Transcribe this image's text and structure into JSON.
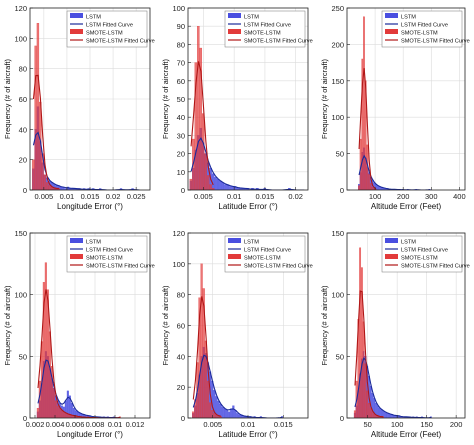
{
  "colors": {
    "lstm_bar": "#4a4fe0",
    "lstm_curve": "#1a2a9a",
    "smote_bar": "#e23a3a",
    "smote_curve": "#b01616",
    "grid": "#dcdcdc",
    "axis": "#222222"
  },
  "legend_labels": [
    "LSTM",
    "LSTM Fitted Curve",
    "SMOTE-LSTM",
    "SMOTE-LSTM Fitted Curve"
  ],
  "chart_data": [
    {
      "type": "bar",
      "panel": "top-left",
      "xlabel": "Longitude Error (°)",
      "ylabel": "Frequency (# of aircraft)",
      "xlim": [
        0.002,
        0.028
      ],
      "ylim": [
        0,
        120
      ],
      "xticks": [
        0.005,
        0.01,
        0.015,
        0.02,
        0.025
      ],
      "xtick_labels": [
        "0.005",
        "0.01",
        "0.015",
        "0.02",
        "0.025"
      ],
      "yticks": [
        0,
        20,
        40,
        60,
        80,
        100,
        120
      ],
      "grid": true,
      "legend_position": "top-right",
      "bin_width": 0.0005,
      "series": [
        {
          "name": "LSTM",
          "bin_start": 0.0025,
          "values": [
            14,
            40,
            55,
            32,
            18,
            10,
            8,
            6,
            5,
            4,
            3,
            3,
            2,
            2,
            1,
            2,
            1,
            1,
            1,
            1,
            1,
            0,
            1,
            0,
            1,
            0,
            1,
            0,
            0,
            1,
            0,
            0,
            0,
            0,
            0,
            0,
            0,
            0,
            1,
            0,
            0,
            0,
            0,
            1,
            0,
            0,
            0
          ]
        },
        {
          "name": "SMOTE-LSTM",
          "bin_start": 0.0025,
          "values": [
            20,
            95,
            110,
            58,
            24,
            10,
            5,
            3,
            2,
            1,
            1,
            1
          ]
        }
      ]
    },
    {
      "type": "bar",
      "panel": "top-middle",
      "xlabel": "Latitude Error (°)",
      "ylabel": "Frequency (# of aircraft)",
      "xlim": [
        0.0025,
        0.022
      ],
      "ylim": [
        0,
        100
      ],
      "xticks": [
        0.005,
        0.01,
        0.015,
        0.02
      ],
      "xtick_labels": [
        "0.005",
        "0.01",
        "0.015",
        "0.02"
      ],
      "yticks": [
        0,
        10,
        20,
        30,
        40,
        50,
        60,
        70,
        80,
        90,
        100
      ],
      "grid": true,
      "legend_position": "top-right",
      "bin_width": 0.0004,
      "series": [
        {
          "name": "LSTM",
          "bin_start": 0.0028,
          "values": [
            5,
            12,
            22,
            30,
            34,
            26,
            20,
            15,
            12,
            9,
            7,
            6,
            5,
            4,
            3,
            3,
            2,
            2,
            2,
            1,
            1,
            1,
            1,
            1,
            0,
            1,
            0,
            1,
            0,
            0,
            1,
            0,
            0,
            0,
            0,
            0,
            0,
            0,
            0,
            0,
            1,
            0,
            0,
            0,
            0,
            0,
            0
          ]
        },
        {
          "name": "SMOTE-LSTM",
          "bin_start": 0.0028,
          "values": [
            6,
            28,
            70,
            90,
            78,
            42,
            20,
            8,
            3,
            1
          ]
        }
      ]
    },
    {
      "type": "bar",
      "panel": "top-right",
      "xlabel": "Altitude Error (Feet)",
      "ylabel": "Frequency (# of aircraft)",
      "xlim": [
        0,
        420
      ],
      "ylim": [
        0,
        250
      ],
      "xticks": [
        100,
        200,
        300,
        400
      ],
      "xtick_labels": [
        "100",
        "200",
        "300",
        "400"
      ],
      "yticks": [
        0,
        50,
        100,
        150,
        200,
        250
      ],
      "grid": true,
      "legend_position": "top-right",
      "bin_width": 6,
      "series": [
        {
          "name": "LSTM",
          "bin_start": 40,
          "values": [
            8,
            24,
            52,
            58,
            44,
            32,
            24,
            18,
            14,
            10,
            8,
            6,
            5,
            4,
            3,
            3,
            2,
            2,
            1,
            1,
            1,
            1,
            1,
            0,
            1,
            0,
            1,
            0,
            0,
            1,
            0,
            0,
            0,
            0,
            1,
            0,
            0,
            0,
            0,
            0,
            0,
            0,
            1
          ]
        },
        {
          "name": "SMOTE-LSTM",
          "bin_start": 40,
          "values": [
            6,
            70,
            180,
            238,
            150,
            62,
            22,
            9,
            4,
            2,
            1
          ]
        }
      ]
    },
    {
      "type": "bar",
      "panel": "bottom-left",
      "xlabel": "Longitude Error (°)",
      "ylabel": "Frequency (# of aircraft)",
      "xlim": [
        0.0015,
        0.0135
      ],
      "ylim": [
        0,
        150
      ],
      "xticks": [
        0.002,
        0.004,
        0.006,
        0.008,
        0.01,
        0.012
      ],
      "xtick_labels": [
        "0.002",
        "0.004",
        "0.006",
        "0.008",
        "0.01",
        "0.012"
      ],
      "yticks": [
        0,
        50,
        100,
        150
      ],
      "grid": true,
      "legend_position": "top-right",
      "bin_width": 0.0002,
      "series": [
        {
          "name": "LSTM",
          "bin_start": 0.0022,
          "values": [
            5,
            14,
            28,
            46,
            54,
            50,
            40,
            32,
            24,
            18,
            14,
            12,
            10,
            9,
            14,
            22,
            18,
            12,
            8,
            6,
            5,
            4,
            3,
            3,
            2,
            2,
            2,
            1,
            1,
            1,
            1,
            1,
            0,
            1,
            0,
            1,
            0,
            0,
            1,
            0,
            0,
            0
          ]
        },
        {
          "name": "SMOTE-LSTM",
          "bin_start": 0.0022,
          "values": [
            8,
            30,
            62,
            110,
            126,
            104,
            70,
            42,
            24,
            14,
            10,
            8,
            6,
            5,
            4,
            3,
            3,
            2,
            2,
            2,
            1,
            1,
            1,
            1,
            0,
            1,
            0,
            0,
            1,
            0,
            0,
            0,
            0,
            0,
            0,
            0,
            0,
            0,
            0,
            0,
            0,
            1
          ]
        }
      ]
    },
    {
      "type": "bar",
      "panel": "bottom-middle",
      "xlabel": "Latitude Error (°)",
      "ylabel": "Frequency (# of aircraft)",
      "xlim": [
        0.0015,
        0.0185
      ],
      "ylim": [
        0,
        120
      ],
      "xticks": [
        0.005,
        0.01,
        0.015
      ],
      "xtick_labels": [
        "0.005",
        "0.01",
        "0.015"
      ],
      "yticks": [
        0,
        20,
        40,
        60,
        80,
        100,
        120
      ],
      "grid": true,
      "legend_position": "top-right",
      "bin_width": 0.0003,
      "series": [
        {
          "name": "LSTM",
          "bin_start": 0.0021,
          "values": [
            3,
            8,
            16,
            28,
            40,
            46,
            42,
            36,
            30,
            24,
            18,
            14,
            11,
            9,
            7,
            6,
            5,
            4,
            6,
            8,
            5,
            3,
            2,
            2,
            1,
            1,
            1,
            1,
            0,
            1,
            0,
            0,
            1,
            0,
            0,
            0,
            0,
            0,
            0,
            0,
            0,
            0,
            1
          ]
        },
        {
          "name": "SMOTE-LSTM",
          "bin_start": 0.0021,
          "values": [
            4,
            12,
            36,
            78,
            100,
            84,
            50,
            24,
            10,
            5,
            3,
            2,
            1,
            1
          ]
        }
      ]
    },
    {
      "type": "bar",
      "panel": "bottom-right",
      "xlabel": "Altitude Error (Feet)",
      "ylabel": "Frequency (# of aircraft)",
      "xlim": [
        15,
        215
      ],
      "ylim": [
        0,
        150
      ],
      "xticks": [
        50,
        100,
        150,
        200
      ],
      "xtick_labels": [
        "50",
        "100",
        "150",
        "200"
      ],
      "yticks": [
        0,
        50,
        100,
        150
      ],
      "grid": true,
      "legend_position": "top-right",
      "bin_width": 3,
      "series": [
        {
          "name": "LSTM",
          "bin_start": 27,
          "values": [
            4,
            10,
            22,
            36,
            48,
            54,
            50,
            42,
            34,
            26,
            20,
            16,
            12,
            10,
            8,
            7,
            6,
            5,
            4,
            4,
            3,
            3,
            2,
            2,
            2,
            2,
            1,
            1,
            1,
            1,
            1,
            1,
            0,
            1,
            0,
            1,
            0,
            0,
            1,
            0,
            0,
            0,
            0,
            1
          ]
        },
        {
          "name": "SMOTE-LSTM",
          "bin_start": 27,
          "values": [
            6,
            30,
            80,
            138,
            122,
            78,
            44,
            22,
            12,
            8,
            5,
            3,
            2,
            2,
            1,
            1,
            1
          ]
        }
      ]
    }
  ]
}
